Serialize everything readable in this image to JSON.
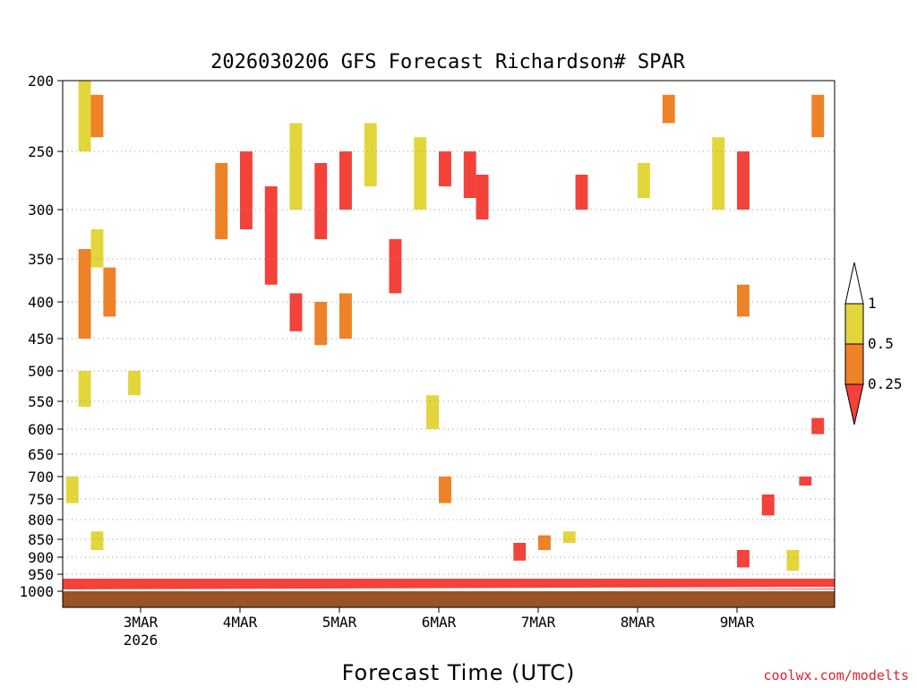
{
  "chart_data": {
    "type": "heatmap",
    "title": "2026030206 GFS Forecast Richardson# SPAR",
    "xlabel": "Forecast Time (UTC)",
    "ylabel": "",
    "y_scale": "pressure (reversed, hPa)",
    "ylim": [
      1000,
      200
    ],
    "y_ticks": [
      "200",
      "250",
      "300",
      "350",
      "400",
      "450",
      "500",
      "550",
      "600",
      "650",
      "700",
      "750",
      "800",
      "850",
      "900",
      "950",
      "1000"
    ],
    "x_ticks": [
      {
        "label": "3MAR",
        "sublabel": "2026"
      },
      {
        "label": "4MAR",
        "sublabel": ""
      },
      {
        "label": "5MAR",
        "sublabel": ""
      },
      {
        "label": "6MAR",
        "sublabel": ""
      },
      {
        "label": "7MAR",
        "sublabel": ""
      },
      {
        "label": "8MAR",
        "sublabel": ""
      },
      {
        "label": "9MAR",
        "sublabel": ""
      }
    ],
    "x_range_days": [
      "2026-03-02 06Z",
      "2026-03-09 18Z"
    ],
    "grid": "dotted horizontal at pressure ticks",
    "legend": {
      "placement": "right",
      "levels": [
        "1",
        "0.5",
        "0.25"
      ],
      "bins": [
        {
          "range": "0.5-1",
          "color": "#e3d63a"
        },
        {
          "range": "0.25-0.5",
          "color": "#ef8126"
        },
        {
          "range": "<0.25",
          "color": "#f4413a"
        }
      ],
      "above_color": "#ffffff"
    },
    "colors": {
      "yellow": "#e3d63a",
      "orange": "#ef8126",
      "red": "#f4413a",
      "ground": "#9b5226"
    },
    "cells": [
      {
        "time": "03-02 09Z",
        "p_top": 200,
        "p_bottom": 250,
        "bin": "0.5-1"
      },
      {
        "time": "03-02 12Z",
        "p_top": 210,
        "p_bottom": 240,
        "bin": "0.25-0.5"
      },
      {
        "time": "03-02 09Z",
        "p_top": 340,
        "p_bottom": 450,
        "bin": "0.25-0.5"
      },
      {
        "time": "03-02 15Z",
        "p_top": 360,
        "p_bottom": 420,
        "bin": "0.25-0.5"
      },
      {
        "time": "03-02 12Z",
        "p_top": 320,
        "p_bottom": 360,
        "bin": "0.5-1"
      },
      {
        "time": "03-02 09Z",
        "p_top": 500,
        "p_bottom": 560,
        "bin": "0.5-1"
      },
      {
        "time": "03-02 21Z",
        "p_top": 500,
        "p_bottom": 540,
        "bin": "0.5-1"
      },
      {
        "time": "03-02 06Z",
        "p_top": 700,
        "p_bottom": 760,
        "bin": "0.5-1"
      },
      {
        "time": "03-02 12Z",
        "p_top": 830,
        "p_bottom": 880,
        "bin": "0.5-1"
      },
      {
        "time": "03-03 18Z",
        "p_top": 260,
        "p_bottom": 330,
        "bin": "0.25-0.5"
      },
      {
        "time": "03-04 00Z",
        "p_top": 250,
        "p_bottom": 320,
        "bin": "<0.25"
      },
      {
        "time": "03-04 06Z",
        "p_top": 280,
        "p_bottom": 380,
        "bin": "<0.25"
      },
      {
        "time": "03-04 12Z",
        "p_top": 230,
        "p_bottom": 300,
        "bin": "0.5-1"
      },
      {
        "time": "03-04 18Z",
        "p_top": 260,
        "p_bottom": 330,
        "bin": "<0.25"
      },
      {
        "time": "03-04 12Z",
        "p_top": 390,
        "p_bottom": 440,
        "bin": "<0.25"
      },
      {
        "time": "03-04 18Z",
        "p_top": 400,
        "p_bottom": 460,
        "bin": "0.25-0.5"
      },
      {
        "time": "03-05 00Z",
        "p_top": 250,
        "p_bottom": 300,
        "bin": "<0.25"
      },
      {
        "time": "03-05 00Z",
        "p_top": 390,
        "p_bottom": 450,
        "bin": "0.25-0.5"
      },
      {
        "time": "03-05 06Z",
        "p_top": 230,
        "p_bottom": 280,
        "bin": "0.5-1"
      },
      {
        "time": "03-05 12Z",
        "p_top": 330,
        "p_bottom": 390,
        "bin": "<0.25"
      },
      {
        "time": "03-05 18Z",
        "p_top": 240,
        "p_bottom": 300,
        "bin": "0.5-1"
      },
      {
        "time": "03-05 21Z",
        "p_top": 540,
        "p_bottom": 600,
        "bin": "0.5-1"
      },
      {
        "time": "03-06 00Z",
        "p_top": 250,
        "p_bottom": 280,
        "bin": "<0.25"
      },
      {
        "time": "03-06 06Z",
        "p_top": 250,
        "p_bottom": 290,
        "bin": "<0.25"
      },
      {
        "time": "03-06 00Z",
        "p_top": 700,
        "p_bottom": 760,
        "bin": "0.25-0.5"
      },
      {
        "time": "03-06 09Z",
        "p_top": 270,
        "p_bottom": 310,
        "bin": "<0.25"
      },
      {
        "time": "03-06 18Z",
        "p_top": 860,
        "p_bottom": 910,
        "bin": "<0.25"
      },
      {
        "time": "03-07 00Z",
        "p_top": 840,
        "p_bottom": 880,
        "bin": "0.25-0.5"
      },
      {
        "time": "03-07 06Z",
        "p_top": 830,
        "p_bottom": 860,
        "bin": "0.5-1"
      },
      {
        "time": "03-07 09Z",
        "p_top": 270,
        "p_bottom": 300,
        "bin": "<0.25"
      },
      {
        "time": "03-08 00Z",
        "p_top": 260,
        "p_bottom": 290,
        "bin": "0.5-1"
      },
      {
        "time": "03-08 06Z",
        "p_top": 210,
        "p_bottom": 230,
        "bin": "0.25-0.5"
      },
      {
        "time": "03-08 18Z",
        "p_top": 240,
        "p_bottom": 300,
        "bin": "0.5-1"
      },
      {
        "time": "03-09 00Z",
        "p_top": 250,
        "p_bottom": 300,
        "bin": "<0.25"
      },
      {
        "time": "03-09 00Z",
        "p_top": 880,
        "p_bottom": 930,
        "bin": "<0.25"
      },
      {
        "time": "03-09 00Z",
        "p_top": 380,
        "p_bottom": 420,
        "bin": "0.25-0.5"
      },
      {
        "time": "03-09 06Z",
        "p_top": 740,
        "p_bottom": 790,
        "bin": "<0.25"
      },
      {
        "time": "03-09 12Z",
        "p_top": 880,
        "p_bottom": 940,
        "bin": "0.5-1"
      },
      {
        "time": "03-09 15Z",
        "p_top": 700,
        "p_bottom": 720,
        "bin": "<0.25"
      },
      {
        "time": "03-09 18Z",
        "p_top": 210,
        "p_bottom": 240,
        "bin": "0.25-0.5"
      },
      {
        "time": "03-09 18Z",
        "p_top": 580,
        "p_bottom": 610,
        "bin": "<0.25"
      }
    ],
    "near_surface_band": "thin <0.25 layer just above 1000 hPa across the whole period"
  },
  "footer": {
    "credit": "coolwx.com/modelts"
  }
}
